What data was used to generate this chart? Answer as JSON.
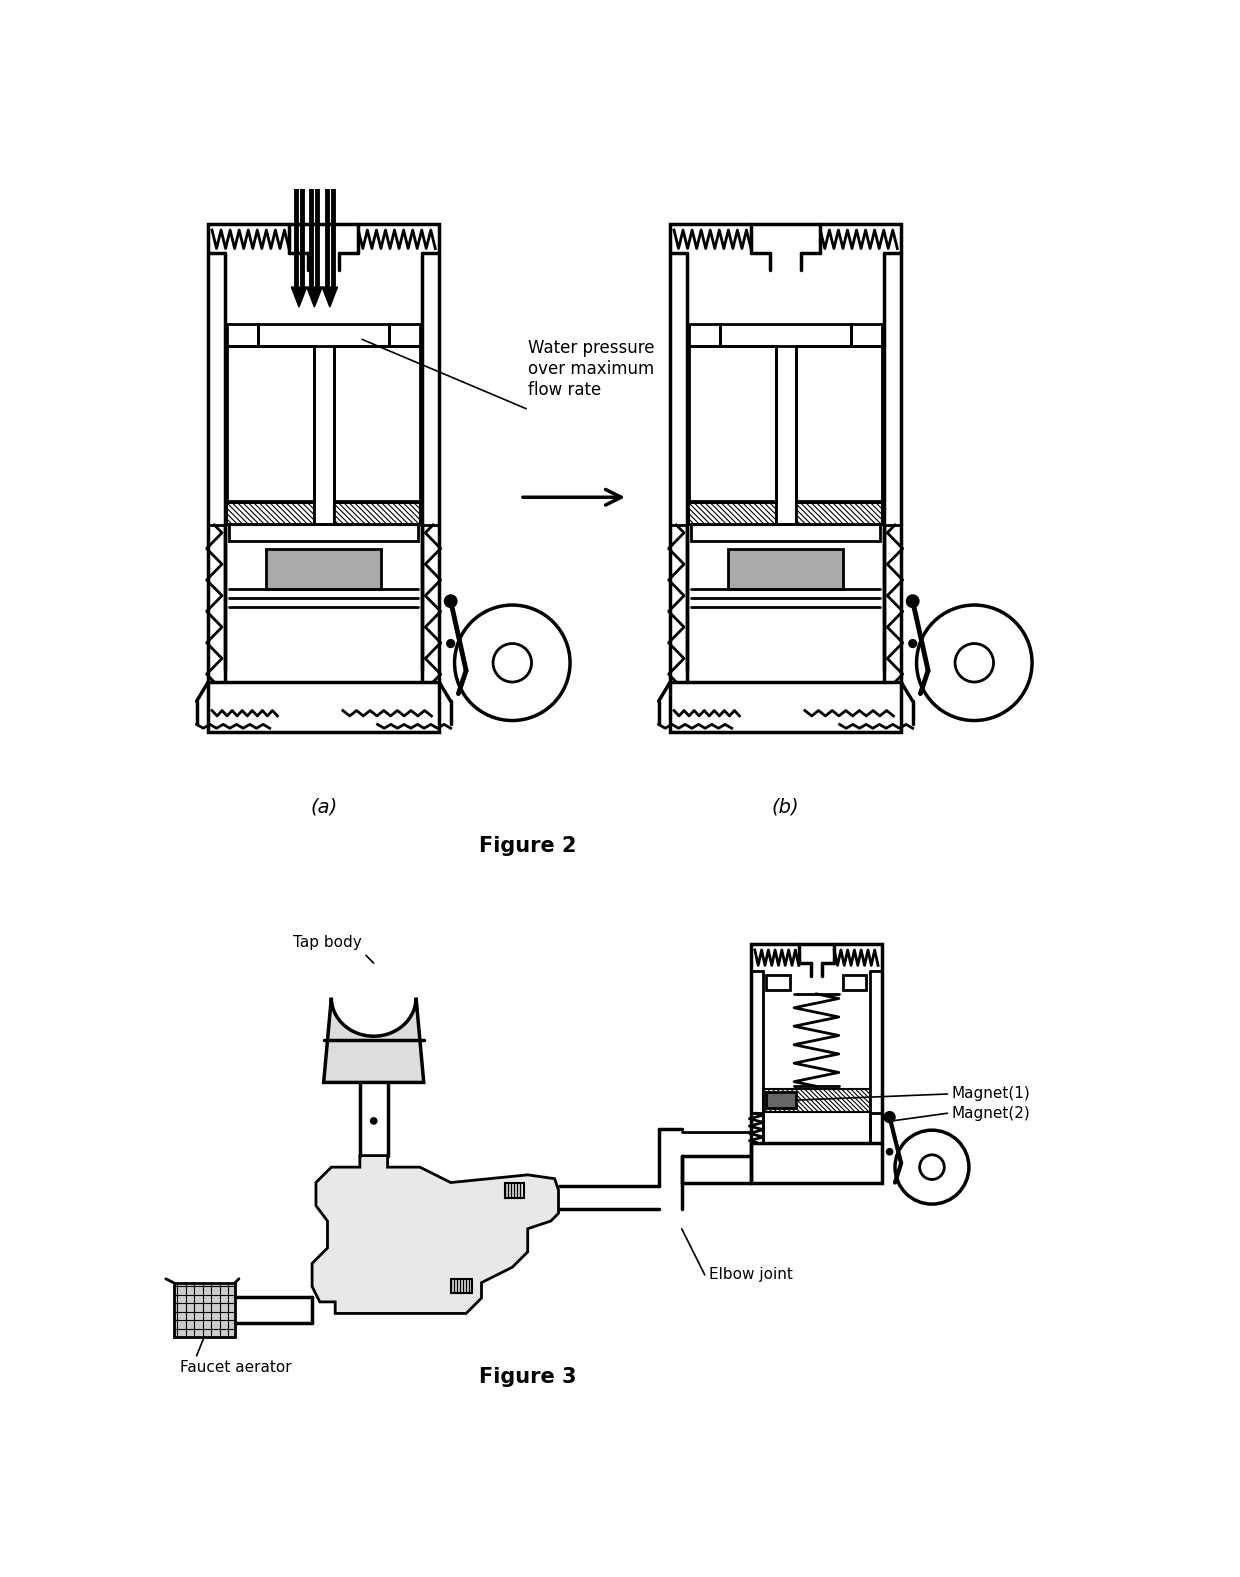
{
  "bg_color": "#ffffff",
  "fig_width": 12.4,
  "fig_height": 15.77,
  "label_a": "(a)",
  "label_b": "(b)",
  "figure2_caption": "Figure 2",
  "figure3_caption": "Figure 3",
  "annotation_water": "Water pressure\nover maximum\nflow rate",
  "annotation_tap": "Tap body",
  "annotation_magnet1": "Magnet(1)",
  "annotation_magnet2": "Magnet(2)",
  "annotation_elbow": "Elbow joint",
  "annotation_faucet": "Faucet aerator"
}
